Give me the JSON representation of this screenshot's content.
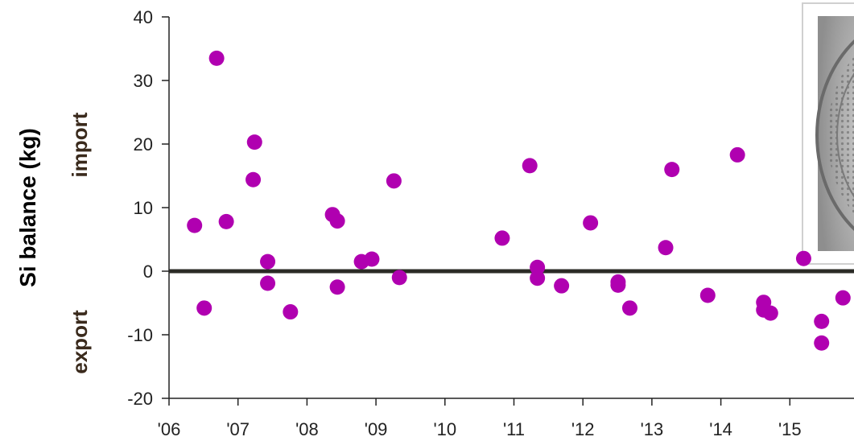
{
  "chart_data": {
    "type": "scatter",
    "ylabel": "Si balance  (kg)",
    "ylabel_import": "import",
    "ylabel_export": "export",
    "x_ticks": [
      "'06",
      "'07",
      "'08",
      "'09",
      "'10",
      "'11",
      "'12",
      "'13",
      "'14",
      "'15"
    ],
    "y_ticks": [
      40,
      30,
      20,
      10,
      0,
      -10,
      -20
    ],
    "ylim": [
      -20,
      40
    ],
    "xlim": [
      2006,
      2016
    ],
    "zero_line": true,
    "grid": false,
    "marker_color": "#b000b0",
    "zero_line_color": "#2b2b26",
    "axis_color": "#222222",
    "points": [
      {
        "x": 2006.37,
        "y": 7.2
      },
      {
        "x": 2006.51,
        "y": -5.8
      },
      {
        "x": 2006.69,
        "y": 33.5
      },
      {
        "x": 2006.83,
        "y": 7.8
      },
      {
        "x": 2007.22,
        "y": 14.4
      },
      {
        "x": 2007.24,
        "y": 20.3
      },
      {
        "x": 2007.43,
        "y": 1.5
      },
      {
        "x": 2007.43,
        "y": -1.9
      },
      {
        "x": 2007.76,
        "y": -6.4
      },
      {
        "x": 2008.37,
        "y": 8.9
      },
      {
        "x": 2008.44,
        "y": 7.9
      },
      {
        "x": 2008.44,
        "y": -2.5
      },
      {
        "x": 2008.79,
        "y": 1.5
      },
      {
        "x": 2008.94,
        "y": 1.9
      },
      {
        "x": 2009.26,
        "y": 14.2
      },
      {
        "x": 2009.34,
        "y": -1.0
      },
      {
        "x": 2010.83,
        "y": 5.2
      },
      {
        "x": 2011.23,
        "y": 16.6
      },
      {
        "x": 2011.34,
        "y": 0.6
      },
      {
        "x": 2011.34,
        "y": -1.1
      },
      {
        "x": 2011.69,
        "y": -2.3
      },
      {
        "x": 2012.11,
        "y": 7.6
      },
      {
        "x": 2012.51,
        "y": -1.7
      },
      {
        "x": 2012.51,
        "y": -2.2
      },
      {
        "x": 2012.68,
        "y": -5.8
      },
      {
        "x": 2013.2,
        "y": 3.7
      },
      {
        "x": 2013.29,
        "y": 16.0
      },
      {
        "x": 2013.81,
        "y": -3.8
      },
      {
        "x": 2014.24,
        "y": 18.3
      },
      {
        "x": 2014.62,
        "y": -4.9
      },
      {
        "x": 2014.62,
        "y": -6.1
      },
      {
        "x": 2014.72,
        "y": -6.6
      },
      {
        "x": 2015.2,
        "y": 2.0
      },
      {
        "x": 2015.46,
        "y": -7.9
      },
      {
        "x": 2015.46,
        "y": -11.3
      },
      {
        "x": 2015.77,
        "y": -4.2
      }
    ]
  },
  "inset_image": {
    "subject": "diatom micrograph",
    "frame_color": "#ffffff",
    "photo_tone": "#9a9a9a"
  }
}
